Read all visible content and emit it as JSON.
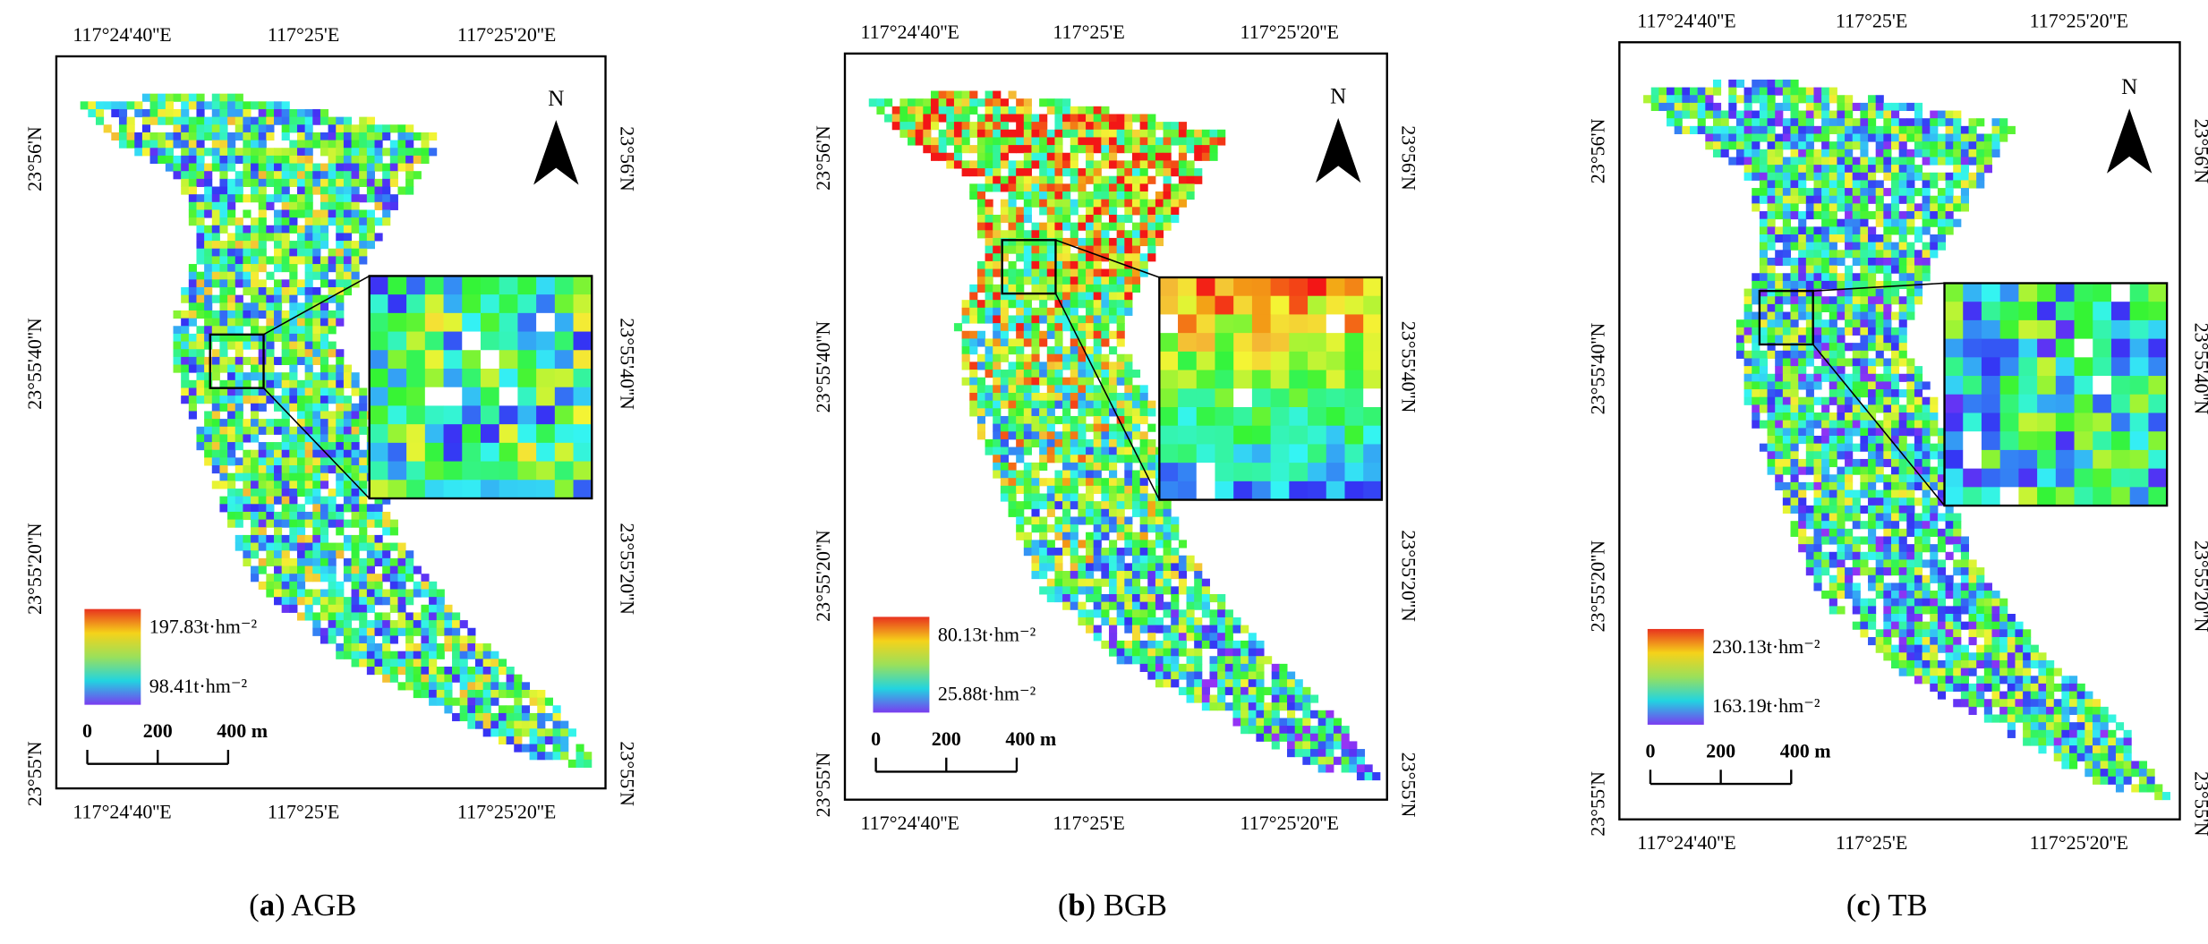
{
  "panels": [
    {
      "top_ticks": [
        "117°24'40''E",
        "117°25'E",
        "117°25'20''E"
      ],
      "bottom_ticks": [
        "117°24'40''E",
        "117°25'E",
        "117°25'20''E"
      ],
      "left_ticks": [
        "23°56'N",
        "23°55'40''N",
        "23°55'20''N",
        "23°55'N"
      ],
      "right_ticks": [
        "23°56'N",
        "23°55'40''N",
        "23°55'20''N",
        "23°55'N"
      ],
      "north": "N",
      "legend_max": "197.83t·hm⁻²",
      "legend_min": "98.41t·hm⁻²",
      "scale_labels": [
        "0",
        "200",
        "400 m"
      ],
      "caption": {
        "open": "(",
        "letter": "a",
        "rest": ") AGB"
      }
    },
    {
      "top_ticks": [
        "117°24'40''E",
        "117°25'E",
        "117°25'20''E"
      ],
      "bottom_ticks": [
        "117°24'40''E",
        "117°25'E",
        "117°25'20''E"
      ],
      "left_ticks": [
        "23°56'N",
        "23°55'40''N",
        "23°55'20''N",
        "23°55'N"
      ],
      "right_ticks": [
        "23°56'N",
        "23°55'40''N",
        "23°55'20''N",
        "23°55'N"
      ],
      "north": "N",
      "legend_max": "80.13t·hm⁻²",
      "legend_min": "25.88t·hm⁻²",
      "scale_labels": [
        "0",
        "200",
        "400 m"
      ],
      "caption": {
        "open": "(",
        "letter": "b",
        "rest": ") BGB"
      }
    },
    {
      "top_ticks": [
        "117°24'40''E",
        "117°25'E",
        "117°25'20''E"
      ],
      "bottom_ticks": [
        "117°24'40''E",
        "117°25'E",
        "117°25'20''E"
      ],
      "left_ticks": [
        "23°56'N",
        "23°55'40''N",
        "23°55'20''N",
        "23°55'N"
      ],
      "right_ticks": [
        "23°56'N",
        "23°55'40''N",
        "23°55'20''N",
        "23°55'N"
      ],
      "north": "N",
      "legend_max": "230.13t·hm⁻²",
      "legend_min": "163.19t·hm⁻²",
      "scale_labels": [
        "0",
        "200",
        "400 m"
      ],
      "caption": {
        "open": "(",
        "letter": "c",
        "rest": ") TB"
      }
    }
  ]
}
